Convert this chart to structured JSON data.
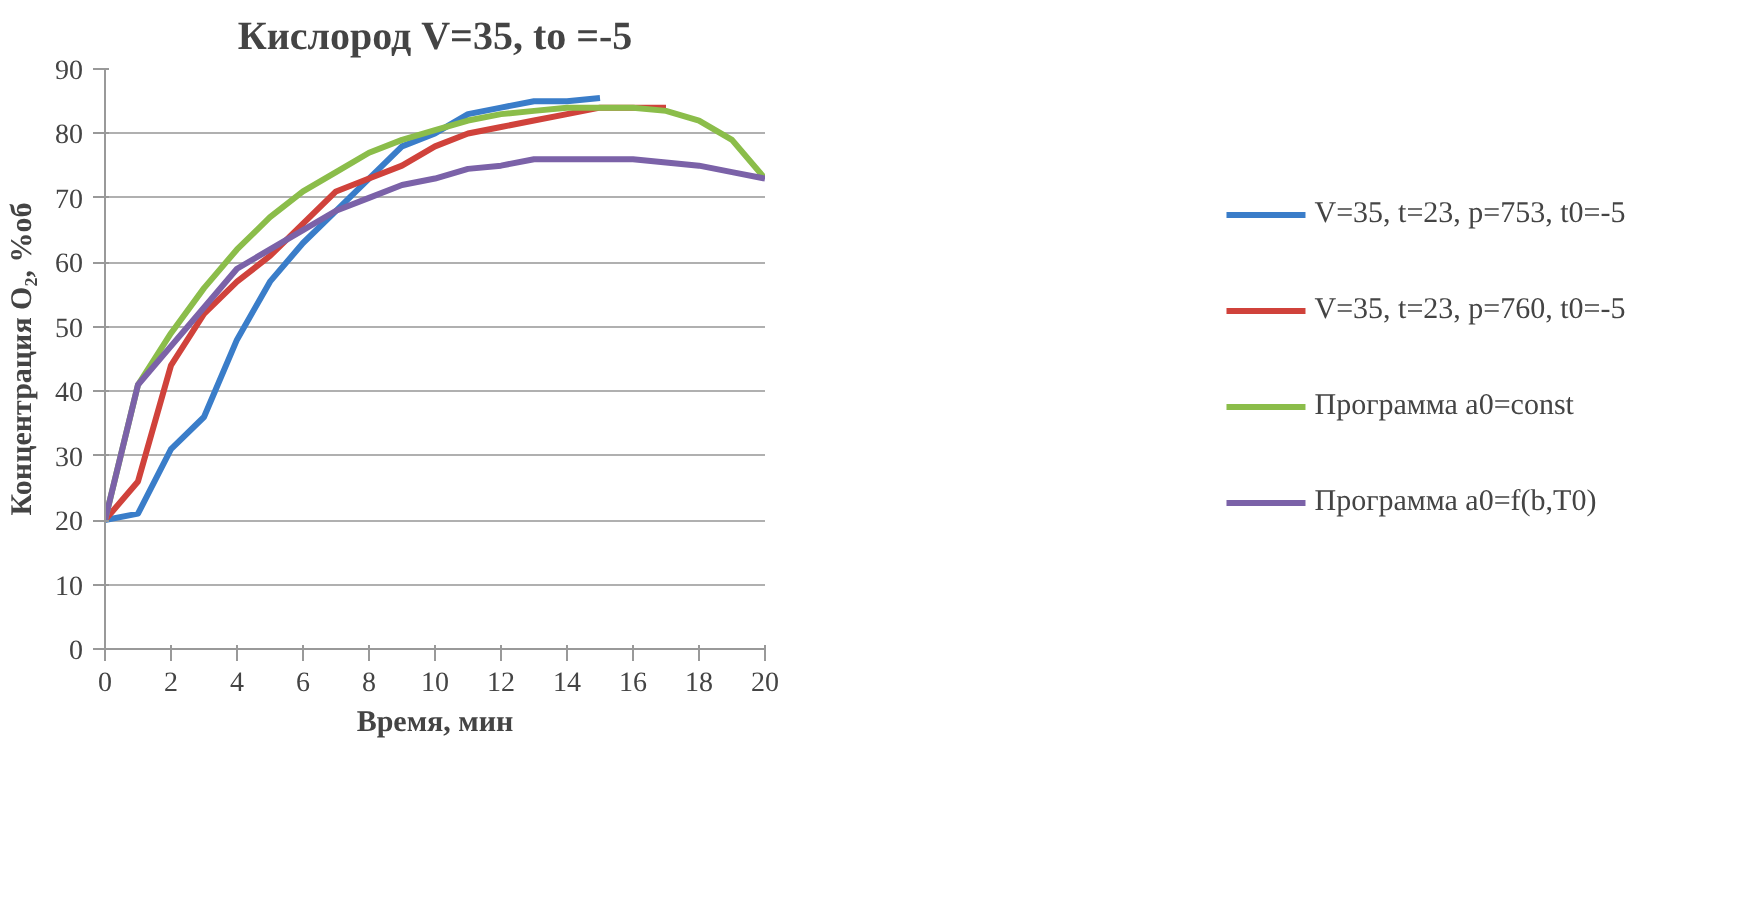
{
  "chart_data": {
    "type": "line",
    "title": "Кислород V=35, to =-5",
    "xlabel": "Время, мин",
    "ylabel": "Концентрация O₂, %об",
    "xlim": [
      0,
      20
    ],
    "xticks": [
      0,
      2,
      4,
      6,
      8,
      10,
      12,
      14,
      16,
      18,
      20
    ],
    "ylim": [
      0,
      90
    ],
    "yticks": [
      0,
      10,
      20,
      30,
      40,
      50,
      60,
      70,
      80,
      90
    ],
    "grid": "y",
    "legend": "right",
    "series": [
      {
        "name": "V=35, t=23, p=753, t0=-5",
        "color": "#3a7dc9",
        "x": [
          0,
          1,
          2,
          3,
          4,
          5,
          6,
          7,
          8,
          9,
          10,
          11,
          12,
          13,
          14,
          15
        ],
        "values": [
          20,
          21,
          31,
          36,
          48,
          57,
          63,
          68,
          73,
          78,
          80,
          83,
          84,
          85,
          85,
          85.5
        ]
      },
      {
        "name": "V=35, t=23, p=760, t0=-5",
        "color": "#d0423b",
        "x": [
          0,
          1,
          2,
          3,
          4,
          5,
          6,
          7,
          8,
          9,
          10,
          11,
          12,
          13,
          14,
          15,
          16,
          17
        ],
        "values": [
          20,
          26,
          44,
          52,
          57,
          61,
          66,
          71,
          73,
          75,
          78,
          80,
          81,
          82,
          83,
          84,
          84,
          84
        ]
      },
      {
        "name": "Программа a0=const",
        "color": "#8bbd4a",
        "x": [
          0,
          1,
          2,
          3,
          4,
          5,
          6,
          7,
          8,
          9,
          10,
          11,
          12,
          13,
          14,
          15,
          16,
          17,
          18,
          19,
          20
        ],
        "values": [
          20,
          41,
          49,
          56,
          62,
          67,
          71,
          74,
          77,
          79,
          80.5,
          82,
          83,
          83.5,
          84,
          84,
          84,
          83.5,
          82,
          79,
          73
        ]
      },
      {
        "name": "Программа a0=f(b,T0)",
        "color": "#7b62a8",
        "x": [
          0,
          1,
          2,
          3,
          4,
          5,
          6,
          7,
          8,
          9,
          10,
          11,
          12,
          13,
          14,
          15,
          16,
          17,
          18,
          19,
          20
        ],
        "values": [
          20,
          41,
          47,
          53,
          59,
          62,
          65,
          68,
          70,
          72,
          73,
          74.5,
          75,
          76,
          76,
          76,
          76,
          75.5,
          75,
          74,
          73
        ]
      }
    ]
  }
}
